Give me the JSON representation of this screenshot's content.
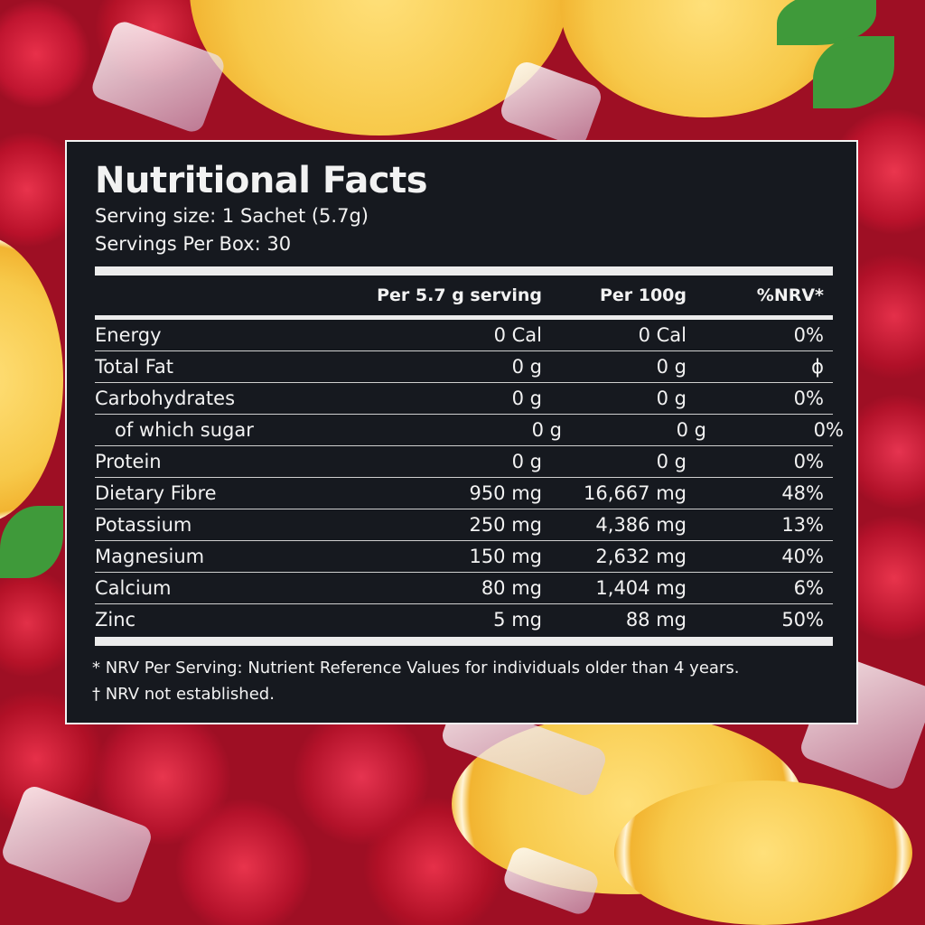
{
  "label": {
    "title": "Nutritional Facts",
    "serving_size": "Serving size: 1 Sachet (5.7g)",
    "servings_per_box": "Servings Per Box: 30",
    "columns": [
      "",
      "Per 5.7 g serving",
      "Per 100g",
      "%NRV*"
    ],
    "rows": [
      {
        "name": "Energy",
        "per_serving": "0 Cal",
        "per_100g": "0 Cal",
        "nrv": "0%"
      },
      {
        "name": "Total Fat",
        "per_serving": "0 g",
        "per_100g": "0 g",
        "nrv": "ϕ"
      },
      {
        "name": "Carbohydrates",
        "per_serving": "0 g",
        "per_100g": "0 g",
        "nrv": "0%"
      },
      {
        "name": "of which sugar",
        "per_serving": "0 g",
        "per_100g": "0 g",
        "nrv": "0%"
      },
      {
        "name": "Protein",
        "per_serving": "0 g",
        "per_100g": "0 g",
        "nrv": "0%"
      },
      {
        "name": "Dietary Fibre",
        "per_serving": "950 mg",
        "per_100g": "16,667 mg",
        "nrv": "48%"
      },
      {
        "name": "Potassium",
        "per_serving": "250 mg",
        "per_100g": "4,386 mg",
        "nrv": "13%"
      },
      {
        "name": "Magnesium",
        "per_serving": "150 mg",
        "per_100g": "2,632 mg",
        "nrv": "40%"
      },
      {
        "name": "Calcium",
        "per_serving": "80 mg",
        "per_100g": "1,404 mg",
        "nrv": "6%"
      },
      {
        "name": "Zinc",
        "per_serving": "5 mg",
        "per_100g": "88 mg",
        "nrv": "50%"
      }
    ],
    "footnote_1": "* NRV Per Serving: Nutrient Reference Values for individuals older than 4 years.",
    "footnote_2": "† NRV not established."
  },
  "colors": {
    "panel": "#16191f",
    "text": "#f2f2f2",
    "rule": "#ececec"
  }
}
